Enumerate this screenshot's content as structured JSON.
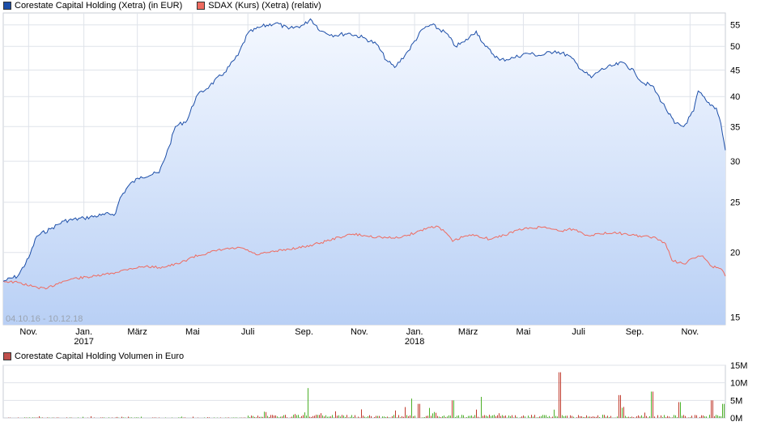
{
  "legend": {
    "main": [
      {
        "label": "Corestate Capital Holding (Xetra) (in EUR)",
        "color": "#1c4ea8"
      },
      {
        "label": "SDAX (Kurs) (Xetra) (relativ)",
        "color": "#ef6b60"
      }
    ],
    "volume": {
      "label": "Corestate Capital Holding Volumen in Euro",
      "color": "#c0504d"
    }
  },
  "date_range": "04.10.16 - 10.12.18",
  "colors": {
    "price_line": "#1c4ea8",
    "index_line": "#ef6b60",
    "area_top": "#f4f8ff",
    "area_bottom": "#b9d0f5",
    "volume_up": "#4caf28",
    "volume_down": "#c0392b",
    "grid": "#dfe3ea"
  },
  "chart_data": [
    {
      "type": "line",
      "x_ticks": [
        {
          "label": "Nov.",
          "sub": ""
        },
        {
          "label": "Jan.",
          "sub": "2017"
        },
        {
          "label": "März",
          "sub": ""
        },
        {
          "label": "Mai",
          "sub": ""
        },
        {
          "label": "Juli",
          "sub": ""
        },
        {
          "label": "Sep.",
          "sub": ""
        },
        {
          "label": "Nov.",
          "sub": ""
        },
        {
          "label": "Jan.",
          "sub": "2018"
        },
        {
          "label": "März",
          "sub": ""
        },
        {
          "label": "Mai",
          "sub": ""
        },
        {
          "label": "Juli",
          "sub": ""
        },
        {
          "label": "Sep.",
          "sub": ""
        },
        {
          "label": "Nov.",
          "sub": ""
        }
      ],
      "y_ticks": [
        "15",
        "20",
        "25",
        "30",
        "35",
        "40",
        "45",
        "50",
        "55"
      ],
      "y_scale": "log",
      "ylim": [
        14.5,
        58
      ],
      "grid": true,
      "series": [
        {
          "name": "Corestate Capital Holding (Xetra) (in EUR)",
          "points": [
            [
              "2016-10-04",
              17.6
            ],
            [
              "2016-10-20",
              18.0
            ],
            [
              "2016-11-01",
              19.5
            ],
            [
              "2016-11-10",
              21.5
            ],
            [
              "2016-11-25",
              22.2
            ],
            [
              "2016-12-10",
              23.0
            ],
            [
              "2017-01-01",
              23.3
            ],
            [
              "2017-01-20",
              23.6
            ],
            [
              "2017-02-05",
              23.8
            ],
            [
              "2017-02-10",
              25.5
            ],
            [
              "2017-02-20",
              27.0
            ],
            [
              "2017-03-05",
              28.0
            ],
            [
              "2017-03-25",
              28.5
            ],
            [
              "2017-04-05",
              32.0
            ],
            [
              "2017-04-12",
              35.0
            ],
            [
              "2017-04-25",
              36.0
            ],
            [
              "2017-05-05",
              40.0
            ],
            [
              "2017-05-20",
              42.0
            ],
            [
              "2017-06-05",
              44.5
            ],
            [
              "2017-06-20",
              48.0
            ],
            [
              "2017-07-01",
              53.0
            ],
            [
              "2017-07-15",
              54.5
            ],
            [
              "2017-08-01",
              55.5
            ],
            [
              "2017-08-15",
              54.0
            ],
            [
              "2017-09-01",
              55.0
            ],
            [
              "2017-09-08",
              56.5
            ],
            [
              "2017-09-20",
              53.5
            ],
            [
              "2017-10-05",
              52.5
            ],
            [
              "2017-10-20",
              53.0
            ],
            [
              "2017-11-05",
              52.0
            ],
            [
              "2017-11-20",
              50.5
            ],
            [
              "2017-12-01",
              47.0
            ],
            [
              "2017-12-10",
              45.5
            ],
            [
              "2017-12-25",
              49.0
            ],
            [
              "2018-01-10",
              54.0
            ],
            [
              "2018-01-20",
              55.0
            ],
            [
              "2018-02-05",
              53.0
            ],
            [
              "2018-02-15",
              50.0
            ],
            [
              "2018-02-25",
              51.0
            ],
            [
              "2018-03-10",
              53.5
            ],
            [
              "2018-03-20",
              50.0
            ],
            [
              "2018-04-05",
              47.0
            ],
            [
              "2018-04-20",
              47.5
            ],
            [
              "2018-05-05",
              48.5
            ],
            [
              "2018-05-20",
              48.0
            ],
            [
              "2018-06-05",
              49.0
            ],
            [
              "2018-06-20",
              48.0
            ],
            [
              "2018-07-05",
              45.0
            ],
            [
              "2018-07-15",
              43.5
            ],
            [
              "2018-07-25",
              45.0
            ],
            [
              "2018-08-10",
              46.0
            ],
            [
              "2018-08-20",
              46.5
            ],
            [
              "2018-09-01",
              44.5
            ],
            [
              "2018-09-10",
              42.5
            ],
            [
              "2018-09-20",
              42.0
            ],
            [
              "2018-10-05",
              38.0
            ],
            [
              "2018-10-15",
              35.5
            ],
            [
              "2018-10-25",
              35.0
            ],
            [
              "2018-11-05",
              37.5
            ],
            [
              "2018-11-10",
              41.0
            ],
            [
              "2018-11-20",
              39.0
            ],
            [
              "2018-11-30",
              38.0
            ],
            [
              "2018-12-05",
              35.5
            ],
            [
              "2018-12-10",
              31.5
            ]
          ]
        },
        {
          "name": "SDAX (Kurs) (Xetra) (relativ)",
          "points": [
            [
              "2016-10-04",
              17.6
            ],
            [
              "2016-10-20",
              17.5
            ],
            [
              "2016-11-05",
              17.2
            ],
            [
              "2016-11-20",
              17.0
            ],
            [
              "2016-12-05",
              17.5
            ],
            [
              "2016-12-20",
              17.8
            ],
            [
              "2017-01-15",
              18.0
            ],
            [
              "2017-02-05",
              18.3
            ],
            [
              "2017-02-20",
              18.6
            ],
            [
              "2017-03-10",
              18.8
            ],
            [
              "2017-03-25",
              18.7
            ],
            [
              "2017-04-15",
              19.0
            ],
            [
              "2017-05-01",
              19.6
            ],
            [
              "2017-05-20",
              20.0
            ],
            [
              "2017-06-05",
              20.3
            ],
            [
              "2017-06-25",
              20.4
            ],
            [
              "2017-07-10",
              19.8
            ],
            [
              "2017-07-25",
              20.0
            ],
            [
              "2017-08-15",
              20.3
            ],
            [
              "2017-09-01",
              20.5
            ],
            [
              "2017-09-20",
              20.9
            ],
            [
              "2017-10-10",
              21.4
            ],
            [
              "2017-10-25",
              21.7
            ],
            [
              "2017-11-10",
              21.5
            ],
            [
              "2017-11-25",
              21.4
            ],
            [
              "2017-12-10",
              21.3
            ],
            [
              "2017-12-25",
              21.6
            ],
            [
              "2018-01-15",
              22.3
            ],
            [
              "2018-01-25",
              22.5
            ],
            [
              "2018-02-05",
              21.8
            ],
            [
              "2018-02-12",
              21.0
            ],
            [
              "2018-02-25",
              21.5
            ],
            [
              "2018-03-10",
              21.6
            ],
            [
              "2018-03-25",
              21.2
            ],
            [
              "2018-04-10",
              21.6
            ],
            [
              "2018-04-25",
              22.1
            ],
            [
              "2018-05-10",
              22.3
            ],
            [
              "2018-05-25",
              22.4
            ],
            [
              "2018-06-10",
              22.0
            ],
            [
              "2018-06-25",
              22.2
            ],
            [
              "2018-07-10",
              21.6
            ],
            [
              "2018-07-25",
              21.7
            ],
            [
              "2018-08-10",
              21.9
            ],
            [
              "2018-08-25",
              21.6
            ],
            [
              "2018-09-10",
              21.5
            ],
            [
              "2018-09-25",
              21.3
            ],
            [
              "2018-10-05",
              20.8
            ],
            [
              "2018-10-12",
              19.3
            ],
            [
              "2018-10-25",
              19.0
            ],
            [
              "2018-11-05",
              19.5
            ],
            [
              "2018-11-15",
              19.7
            ],
            [
              "2018-11-25",
              18.8
            ],
            [
              "2018-12-05",
              18.6
            ],
            [
              "2018-12-10",
              18.0
            ]
          ]
        }
      ]
    },
    {
      "type": "bar",
      "title": "Corestate Capital Holding Volumen in Euro",
      "y_ticks": [
        "0M",
        "5M",
        "10M",
        "15M"
      ],
      "ylim": [
        0,
        15
      ],
      "unit": "M EUR",
      "spikes": [
        [
          "2017-09-05",
          8.5
        ],
        [
          "2017-12-28",
          5.5
        ],
        [
          "2018-01-05",
          4.0
        ],
        [
          "2018-02-12",
          5.0
        ],
        [
          "2018-03-15",
          6.0
        ],
        [
          "2018-06-10",
          13.0
        ],
        [
          "2018-08-15",
          6.5
        ],
        [
          "2018-09-20",
          7.5
        ],
        [
          "2018-10-20",
          4.5
        ],
        [
          "2018-11-25",
          5.0
        ],
        [
          "2018-12-07",
          4.0
        ]
      ]
    }
  ]
}
